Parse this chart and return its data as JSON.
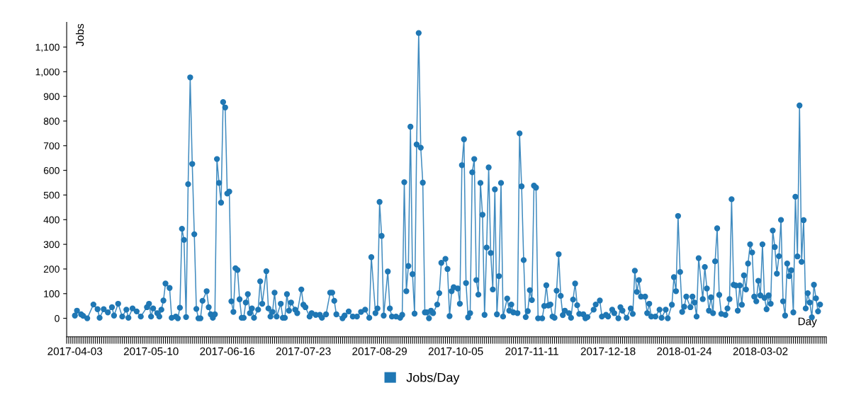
{
  "chart_data": {
    "type": "line",
    "xlabel": "Day",
    "ylabel": "Jobs",
    "legend": "bottom",
    "marker": "circle",
    "line_style": "solid",
    "grid": false,
    "xlim": [
      "2017-03-30",
      "2018-04-03"
    ],
    "ylim": [
      -75,
      1200
    ],
    "xticks": [
      "2017-04-03",
      "2017-05-10",
      "2017-06-16",
      "2017-07-23",
      "2017-08-29",
      "2017-10-05",
      "2017-11-11",
      "2017-12-18",
      "2018-01-24",
      "2018-03-02"
    ],
    "yticks": [
      0,
      100,
      200,
      300,
      400,
      500,
      600,
      700,
      800,
      900,
      {
        "value": 1000,
        "label": "1,000"
      },
      {
        "value": 1100,
        "label": "1,100"
      }
    ],
    "series": [
      {
        "name": "Jobs/Day",
        "color": "#1f77b4",
        "x": [
          "2017-04-03",
          "2017-04-04",
          "2017-04-06",
          "2017-04-07",
          "2017-04-09",
          "2017-04-12",
          "2017-04-14",
          "2017-04-15",
          "2017-04-17",
          "2017-04-19",
          "2017-04-21",
          "2017-04-22",
          "2017-04-24",
          "2017-04-26",
          "2017-04-28",
          "2017-04-29",
          "2017-05-01",
          "2017-05-03",
          "2017-05-05",
          "2017-05-08",
          "2017-05-09",
          "2017-05-10",
          "2017-05-11",
          "2017-05-13",
          "2017-05-14",
          "2017-05-15",
          "2017-05-16",
          "2017-05-17",
          "2017-05-19",
          "2017-05-20",
          "2017-05-22",
          "2017-05-23",
          "2017-05-24",
          "2017-05-25",
          "2017-05-26",
          "2017-05-27",
          "2017-05-28",
          "2017-05-29",
          "2017-05-30",
          "2017-05-31",
          "2017-06-01",
          "2017-06-02",
          "2017-06-03",
          "2017-06-04",
          "2017-06-06",
          "2017-06-07",
          "2017-06-08",
          "2017-06-09",
          "2017-06-10",
          "2017-06-11",
          "2017-06-12",
          "2017-06-13",
          "2017-06-14",
          "2017-06-15",
          "2017-06-16",
          "2017-06-17",
          "2017-06-18",
          "2017-06-19",
          "2017-06-20",
          "2017-06-21",
          "2017-06-22",
          "2017-06-23",
          "2017-06-24",
          "2017-06-25",
          "2017-06-26",
          "2017-06-27",
          "2017-06-28",
          "2017-06-29",
          "2017-07-01",
          "2017-07-02",
          "2017-07-03",
          "2017-07-05",
          "2017-07-06",
          "2017-07-07",
          "2017-07-08",
          "2017-07-09",
          "2017-07-10",
          "2017-07-12",
          "2017-07-13",
          "2017-07-14",
          "2017-07-15",
          "2017-07-16",
          "2017-07-17",
          "2017-07-19",
          "2017-07-20",
          "2017-07-22",
          "2017-07-23",
          "2017-07-24",
          "2017-07-26",
          "2017-07-27",
          "2017-07-29",
          "2017-07-31",
          "2017-08-01",
          "2017-08-03",
          "2017-08-05",
          "2017-08-06",
          "2017-08-07",
          "2017-08-08",
          "2017-08-11",
          "2017-08-12",
          "2017-08-14",
          "2017-08-16",
          "2017-08-18",
          "2017-08-20",
          "2017-08-22",
          "2017-08-24",
          "2017-08-25",
          "2017-08-27",
          "2017-08-28",
          "2017-08-29",
          "2017-08-30",
          "2017-08-31",
          "2017-09-02",
          "2017-09-03",
          "2017-09-04",
          "2017-09-06",
          "2017-09-08",
          "2017-09-09",
          "2017-09-10",
          "2017-09-11",
          "2017-09-12",
          "2017-09-13",
          "2017-09-14",
          "2017-09-15",
          "2017-09-16",
          "2017-09-17",
          "2017-09-18",
          "2017-09-19",
          "2017-09-20",
          "2017-09-21",
          "2017-09-22",
          "2017-09-23",
          "2017-09-24",
          "2017-09-26",
          "2017-09-27",
          "2017-09-28",
          "2017-09-30",
          "2017-10-01",
          "2017-10-02",
          "2017-10-03",
          "2017-10-04",
          "2017-10-06",
          "2017-10-07",
          "2017-10-08",
          "2017-10-09",
          "2017-10-10",
          "2017-10-11",
          "2017-10-12",
          "2017-10-13",
          "2017-10-14",
          "2017-10-15",
          "2017-10-16",
          "2017-10-17",
          "2017-10-18",
          "2017-10-19",
          "2017-10-20",
          "2017-10-21",
          "2017-10-22",
          "2017-10-23",
          "2017-10-24",
          "2017-10-25",
          "2017-10-26",
          "2017-10-27",
          "2017-10-28",
          "2017-10-30",
          "2017-10-31",
          "2017-11-01",
          "2017-11-02",
          "2017-11-04",
          "2017-11-05",
          "2017-11-06",
          "2017-11-07",
          "2017-11-08",
          "2017-11-09",
          "2017-11-10",
          "2017-11-11",
          "2017-11-12",
          "2017-11-13",
          "2017-11-14",
          "2017-11-16",
          "2017-11-17",
          "2017-11-18",
          "2017-11-19",
          "2017-11-20",
          "2017-11-21",
          "2017-11-22",
          "2017-11-23",
          "2017-11-24",
          "2017-11-25",
          "2017-11-26",
          "2017-11-27",
          "2017-11-29",
          "2017-11-30",
          "2017-12-01",
          "2017-12-02",
          "2017-12-03",
          "2017-12-04",
          "2017-12-06",
          "2017-12-07",
          "2017-12-08",
          "2017-12-11",
          "2017-12-12",
          "2017-12-14",
          "2017-12-15",
          "2017-12-17",
          "2017-12-18",
          "2017-12-20",
          "2017-12-21",
          "2017-12-23",
          "2017-12-24",
          "2017-12-25",
          "2017-12-27",
          "2017-12-29",
          "2017-12-30",
          "2017-12-31",
          "2018-01-01",
          "2018-01-02",
          "2018-01-03",
          "2018-01-05",
          "2018-01-06",
          "2018-01-07",
          "2018-01-08",
          "2018-01-10",
          "2018-01-12",
          "2018-01-13",
          "2018-01-15",
          "2018-01-16",
          "2018-01-18",
          "2018-01-19",
          "2018-01-20",
          "2018-01-21",
          "2018-01-22",
          "2018-01-23",
          "2018-01-24",
          "2018-01-25",
          "2018-01-27",
          "2018-01-28",
          "2018-01-29",
          "2018-01-30",
          "2018-01-31",
          "2018-02-02",
          "2018-02-03",
          "2018-02-04",
          "2018-02-05",
          "2018-02-06",
          "2018-02-07",
          "2018-02-08",
          "2018-02-09",
          "2018-02-10",
          "2018-02-11",
          "2018-02-13",
          "2018-02-14",
          "2018-02-15",
          "2018-02-16",
          "2018-02-17",
          "2018-02-18",
          "2018-02-19",
          "2018-02-20",
          "2018-02-21",
          "2018-02-22",
          "2018-02-23",
          "2018-02-24",
          "2018-02-25",
          "2018-02-26",
          "2018-02-27",
          "2018-02-28",
          "2018-03-01",
          "2018-03-02",
          "2018-03-03",
          "2018-03-04",
          "2018-03-05",
          "2018-03-06",
          "2018-03-07",
          "2018-03-08",
          "2018-03-09",
          "2018-03-10",
          "2018-03-11",
          "2018-03-12",
          "2018-03-13",
          "2018-03-14",
          "2018-03-15",
          "2018-03-16",
          "2018-03-17",
          "2018-03-18",
          "2018-03-19",
          "2018-03-20",
          "2018-03-21",
          "2018-03-22",
          "2018-03-23",
          "2018-03-24",
          "2018-03-25",
          "2018-03-26",
          "2018-03-27",
          "2018-03-28",
          "2018-03-29",
          "2018-03-30",
          "2018-03-31"
        ],
        "values": [
          11,
          31,
          16,
          10,
          0,
          56,
          37,
          2,
          37,
          24,
          45,
          11,
          59,
          7,
          35,
          2,
          40,
          28,
          7,
          45,
          59,
          7,
          40,
          21,
          7,
          35,
          72,
          141,
          123,
          2,
          7,
          0,
          43,
          363,
          318,
          5,
          544,
          977,
          626,
          341,
          38,
          0,
          0,
          71,
          110,
          45,
          16,
          2,
          16,
          646,
          549,
          469,
          877,
          855,
          506,
          514,
          69,
          26,
          203,
          196,
          77,
          2,
          2,
          64,
          98,
          21,
          40,
          2,
          35,
          150,
          59,
          191,
          40,
          7,
          26,
          104,
          7,
          59,
          2,
          2,
          98,
          31,
          64,
          35,
          21,
          117,
          55,
          45,
          7,
          21,
          14,
          14,
          2,
          16,
          104,
          104,
          71,
          16,
          0,
          11,
          28,
          7,
          7,
          26,
          35,
          2,
          248,
          21,
          40,
          472,
          334,
          11,
          190,
          40,
          7,
          7,
          2,
          14,
          552,
          110,
          212,
          777,
          179,
          19,
          705,
          1157,
          692,
          550,
          24,
          24,
          0,
          31,
          21,
          56,
          102,
          225,
          241,
          200,
          9,
          110,
          126,
          121,
          59,
          621,
          726,
          143,
          4,
          21,
          592,
          646,
          155,
          96,
          549,
          420,
          14,
          287,
          612,
          265,
          117,
          523,
          16,
          171,
          549,
          7,
          80,
          31,
          56,
          24,
          21,
          750,
          535,
          236,
          5,
          29,
          114,
          74,
          538,
          530,
          0,
          0,
          50,
          134,
          52,
          56,
          7,
          2,
          112,
          260,
          91,
          13,
          31,
          21,
          2,
          76,
          141,
          53,
          18,
          16,
          0,
          5,
          35,
          56,
          72,
          7,
          14,
          7,
          35,
          21,
          0,
          45,
          31,
          2,
          40,
          18,
          193,
          107,
          155,
          88,
          88,
          21,
          59,
          7,
          7,
          35,
          2,
          35,
          0,
          55,
          167,
          110,
          415,
          188,
          26,
          47,
          88,
          45,
          88,
          64,
          7,
          244,
          78,
          208,
          121,
          31,
          85,
          21,
          231,
          365,
          95,
          18,
          14,
          40,
          78,
          483,
          136,
          133,
          31,
          133,
          55,
          174,
          117,
          222,
          300,
          267,
          88,
          69,
          152,
          93,
          300,
          83,
          37,
          93,
          59,
          356,
          289,
          181,
          252,
          399,
          69,
          11,
          222,
          171,
          195,
          24,
          493,
          251,
          863,
          229,
          398,
          40,
          102,
          64,
          4,
          136,
          81,
          28,
          56
        ]
      }
    ]
  }
}
